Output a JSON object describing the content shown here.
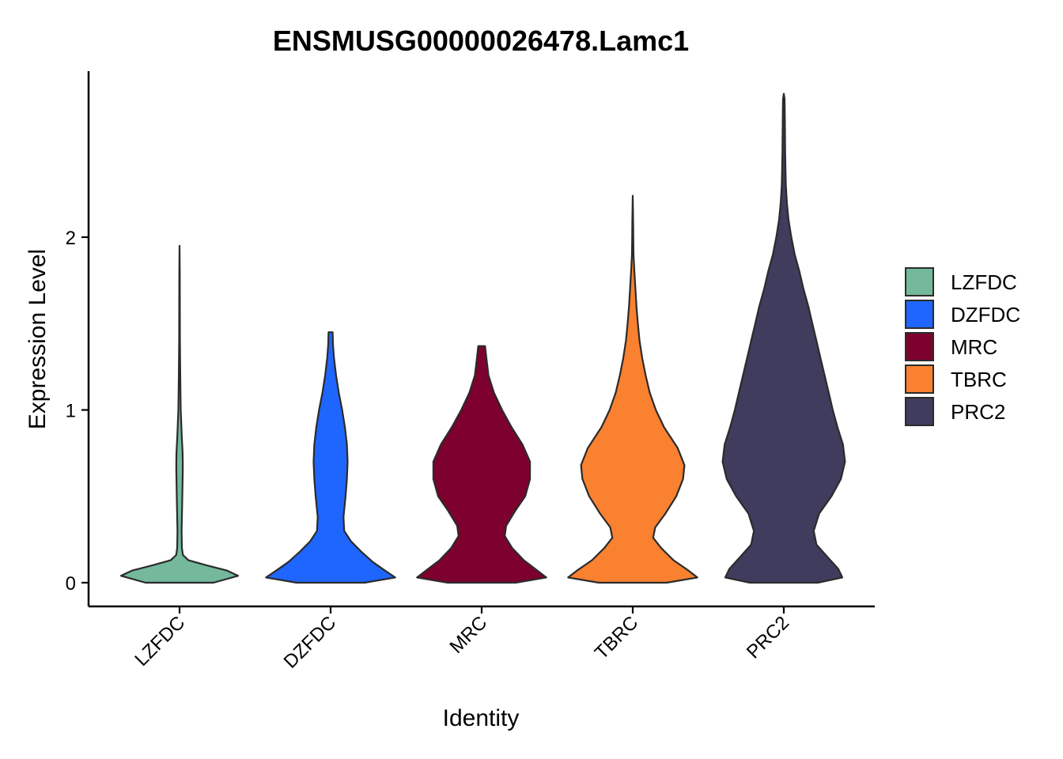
{
  "chart_data": {
    "type": "violin",
    "title": "ENSMUSG00000026478.Lamc1",
    "xlabel": "Identity",
    "ylabel": "Expression Level",
    "ylim": [
      -0.13,
      2.95
    ],
    "yticks": [
      0,
      1,
      2
    ],
    "legend_position": "right",
    "grid": false,
    "categories": [
      "LZFDC",
      "DZFDC",
      "MRC",
      "TBRC",
      "PRC2"
    ],
    "series": [
      {
        "name": "LZFDC",
        "color": "#74B99C",
        "max": 1.95,
        "density": [
          [
            0,
            0.5
          ],
          [
            0.04,
            0.86
          ],
          [
            0.07,
            0.7
          ],
          [
            0.1,
            0.4
          ],
          [
            0.13,
            0.13
          ],
          [
            0.16,
            0.05
          ],
          [
            0.2,
            0.035
          ],
          [
            0.3,
            0.03
          ],
          [
            0.45,
            0.038
          ],
          [
            0.6,
            0.045
          ],
          [
            0.65,
            0.048
          ],
          [
            0.7,
            0.048
          ],
          [
            0.75,
            0.045
          ],
          [
            0.85,
            0.032
          ],
          [
            1.0,
            0.018
          ],
          [
            1.2,
            0.01
          ],
          [
            1.4,
            0.006
          ],
          [
            1.6,
            0.005
          ],
          [
            1.8,
            0.004
          ],
          [
            1.95,
            0
          ]
        ]
      },
      {
        "name": "DZFDC",
        "color": "#1F66FF",
        "max": 1.45,
        "density": [
          [
            0,
            0.5
          ],
          [
            0.03,
            0.95
          ],
          [
            0.07,
            0.8
          ],
          [
            0.12,
            0.62
          ],
          [
            0.18,
            0.45
          ],
          [
            0.24,
            0.3
          ],
          [
            0.3,
            0.2
          ],
          [
            0.38,
            0.19
          ],
          [
            0.5,
            0.22
          ],
          [
            0.6,
            0.24
          ],
          [
            0.7,
            0.25
          ],
          [
            0.8,
            0.24
          ],
          [
            0.9,
            0.21
          ],
          [
            1.0,
            0.17
          ],
          [
            1.1,
            0.12
          ],
          [
            1.2,
            0.08
          ],
          [
            1.3,
            0.05
          ],
          [
            1.38,
            0.035
          ],
          [
            1.45,
            0.03
          ]
        ]
      },
      {
        "name": "MRC",
        "color": "#7E002E",
        "max": 1.37,
        "density": [
          [
            0,
            0.5
          ],
          [
            0.03,
            0.95
          ],
          [
            0.07,
            0.82
          ],
          [
            0.13,
            0.62
          ],
          [
            0.2,
            0.45
          ],
          [
            0.27,
            0.34
          ],
          [
            0.33,
            0.36
          ],
          [
            0.42,
            0.5
          ],
          [
            0.5,
            0.64
          ],
          [
            0.6,
            0.71
          ],
          [
            0.7,
            0.71
          ],
          [
            0.8,
            0.6
          ],
          [
            0.9,
            0.44
          ],
          [
            1.0,
            0.3
          ],
          [
            1.1,
            0.18
          ],
          [
            1.2,
            0.1
          ],
          [
            1.3,
            0.07
          ],
          [
            1.37,
            0.05
          ]
        ]
      },
      {
        "name": "TBRC",
        "color": "#F98130",
        "max": 2.24,
        "density": [
          [
            0,
            0.5
          ],
          [
            0.03,
            0.95
          ],
          [
            0.07,
            0.82
          ],
          [
            0.13,
            0.6
          ],
          [
            0.2,
            0.42
          ],
          [
            0.26,
            0.3
          ],
          [
            0.32,
            0.33
          ],
          [
            0.4,
            0.48
          ],
          [
            0.5,
            0.64
          ],
          [
            0.6,
            0.74
          ],
          [
            0.68,
            0.76
          ],
          [
            0.78,
            0.66
          ],
          [
            0.9,
            0.46
          ],
          [
            1.0,
            0.34
          ],
          [
            1.1,
            0.25
          ],
          [
            1.2,
            0.19
          ],
          [
            1.3,
            0.14
          ],
          [
            1.4,
            0.1
          ],
          [
            1.5,
            0.075
          ],
          [
            1.6,
            0.055
          ],
          [
            1.7,
            0.04
          ],
          [
            1.8,
            0.025
          ],
          [
            1.9,
            0.012
          ],
          [
            2.0,
            0.008
          ],
          [
            2.1,
            0.006
          ],
          [
            2.24,
            0
          ]
        ]
      },
      {
        "name": "PRC2",
        "color": "#403C5D",
        "max": 2.83,
        "density": [
          [
            0,
            0.5
          ],
          [
            0.03,
            0.86
          ],
          [
            0.08,
            0.8
          ],
          [
            0.15,
            0.64
          ],
          [
            0.22,
            0.48
          ],
          [
            0.3,
            0.44
          ],
          [
            0.4,
            0.52
          ],
          [
            0.5,
            0.7
          ],
          [
            0.6,
            0.84
          ],
          [
            0.7,
            0.9
          ],
          [
            0.8,
            0.87
          ],
          [
            0.9,
            0.79
          ],
          [
            1.0,
            0.72
          ],
          [
            1.1,
            0.66
          ],
          [
            1.2,
            0.6
          ],
          [
            1.3,
            0.54
          ],
          [
            1.4,
            0.48
          ],
          [
            1.5,
            0.42
          ],
          [
            1.6,
            0.36
          ],
          [
            1.7,
            0.29
          ],
          [
            1.8,
            0.23
          ],
          [
            1.9,
            0.16
          ],
          [
            2.0,
            0.11
          ],
          [
            2.1,
            0.07
          ],
          [
            2.2,
            0.045
          ],
          [
            2.3,
            0.03
          ],
          [
            2.4,
            0.024
          ],
          [
            2.5,
            0.02
          ],
          [
            2.6,
            0.018
          ],
          [
            2.7,
            0.015
          ],
          [
            2.8,
            0.012
          ],
          [
            2.83,
            0
          ]
        ]
      }
    ]
  }
}
